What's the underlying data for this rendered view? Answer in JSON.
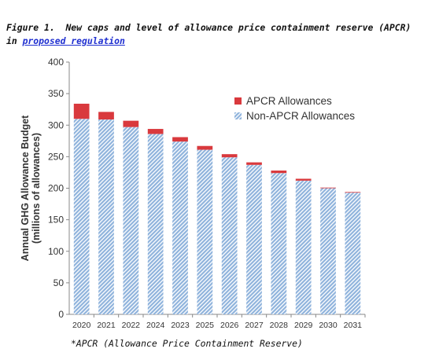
{
  "caption": {
    "label": "Figure 1.",
    "text": "New caps and level of allowance price containment reserve (APCR) in",
    "link_text": "proposed regulation"
  },
  "footnote": "*APCR (Allowance Price Containment Reserve)",
  "chart_data": {
    "type": "bar",
    "stacked": true,
    "categories": [
      "2020",
      "2021",
      "2022",
      "2024",
      "2023",
      "2025",
      "2026",
      "2027",
      "2028",
      "2029",
      "2030",
      "2031"
    ],
    "series": [
      {
        "name": "Non-APCR Allowances",
        "values": [
          310,
          309,
          297,
          286,
          274,
          261,
          249,
          237,
          224,
          212,
          200,
          193
        ],
        "color": "#8fb3dc",
        "pattern": "diagonal-hatch"
      },
      {
        "name": "APCR Allowances",
        "values": [
          24,
          12,
          10,
          8,
          7,
          6,
          5,
          4,
          4,
          3,
          1,
          1
        ],
        "color": "#d9393d",
        "pattern": "solid"
      }
    ],
    "ylabel": [
      "Annual GHG Allowance Budget",
      "(millions of allowances)"
    ],
    "ylim": [
      0,
      400
    ],
    "yticks": [
      0,
      50,
      100,
      150,
      200,
      250,
      300,
      350,
      400
    ],
    "grid": false,
    "legend": {
      "position": "top-right",
      "order": [
        "APCR Allowances",
        "Non-APCR Allowances"
      ]
    }
  }
}
